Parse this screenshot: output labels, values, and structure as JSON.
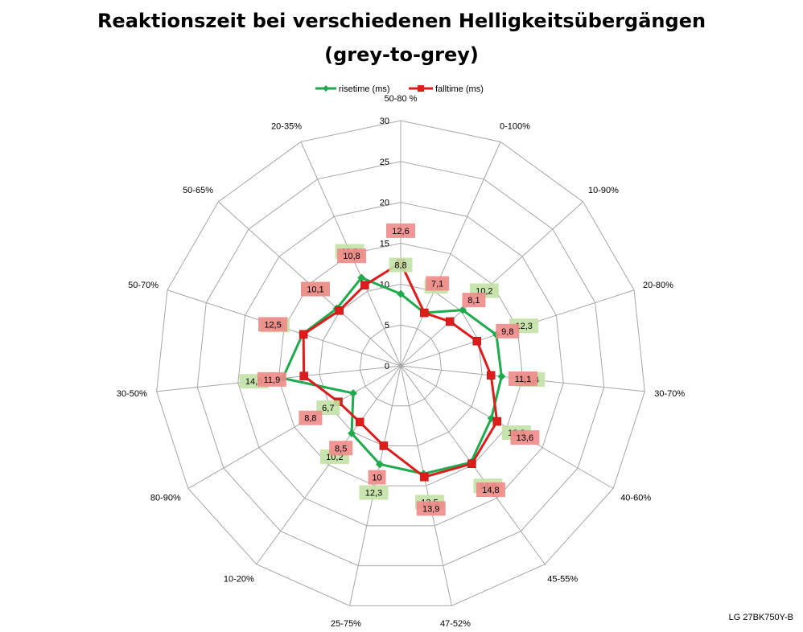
{
  "title_line1": "Reaktionszeit bei verschiedenen Helligkeitsübergängen",
  "title_line2": "(grey-to-grey)",
  "footer": "LG 27BK750Y-B",
  "colors": {
    "rise": "#1faa4e",
    "fall": "#dd1c1c",
    "rise_label_bg": "#c2e2a6",
    "fall_label_bg": "#f08a8a",
    "grid": "#a6a6a6"
  },
  "chart_data": {
    "type": "radar",
    "title": "Reaktionszeit bei verschiedenen Helligkeitsübergängen (grey-to-grey)",
    "categories": [
      "50-80 %",
      "0-100%",
      "10-90%",
      "20-80%",
      "30-70%",
      "40-60%",
      "45-55%",
      "47-52%",
      "25-75%",
      "10-20%",
      "80-90%",
      "30-50%",
      "50-70%",
      "50-65%",
      "20-35%"
    ],
    "r_ticks": [
      "0",
      "5",
      "10",
      "15",
      "20",
      "25",
      "30"
    ],
    "rlim": [
      0,
      30
    ],
    "grid": true,
    "legend_position": "top",
    "series": [
      {
        "name": "risetime (ms)",
        "values": [
          8.8,
          7.1,
          10.2,
          12.3,
          12.4,
          12.8,
          14.6,
          13.5,
          12.3,
          10.2,
          6.7,
          14.5,
          12.6,
          10.5,
          11.8
        ],
        "labels": [
          "8,8",
          "7,1",
          "10,2",
          "12,3",
          "12,4",
          "12,8",
          "14,6",
          "13,5",
          "12,3",
          "10,2",
          "6,7",
          "14,5",
          "12,6",
          "10,5",
          "11,8"
        ]
      },
      {
        "name": "falltime (ms)",
        "values": [
          12.6,
          7.1,
          8.1,
          9.8,
          11.1,
          13.6,
          14.8,
          13.9,
          10.0,
          8.5,
          8.8,
          11.9,
          12.5,
          10.1,
          10.8
        ],
        "labels": [
          "12,6",
          "7,1",
          "8,1",
          "9,8",
          "11,1",
          "13,6",
          "14,8",
          "13,9",
          "10",
          "8,5",
          "8,8",
          "11,9",
          "12,5",
          "10,1",
          "10,8"
        ]
      }
    ]
  }
}
